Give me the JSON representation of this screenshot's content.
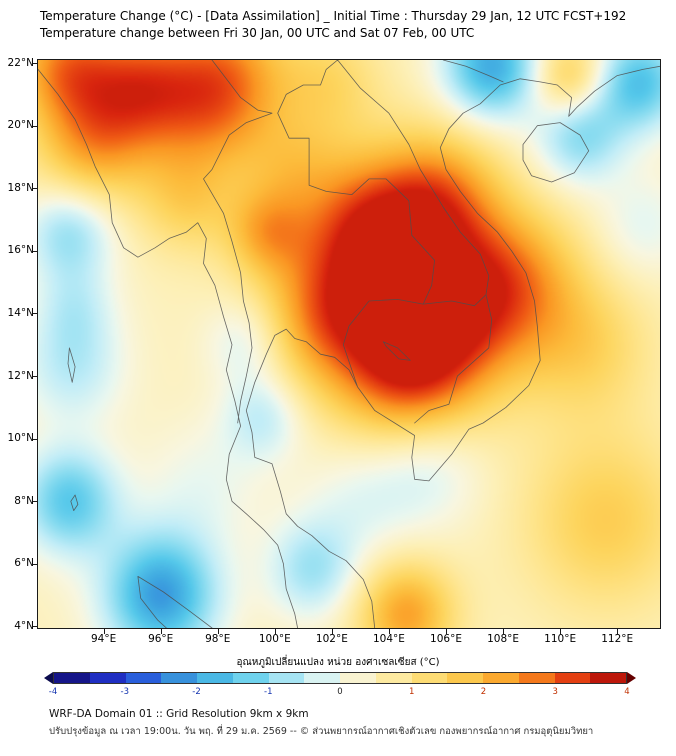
{
  "header": {
    "title_line1": "Temperature Change (°C) - [Data Assimilation] _ Initial Time : Thursday 29 Jan, 12 UTC FCST+192",
    "title_line2": "Temperature change between Fri 30 Jan, 00 UTC and Sat 07 Feb, 00 UTC"
  },
  "map": {
    "lat_ticks": [
      {
        "value": 4,
        "label": "4°N"
      },
      {
        "value": 6,
        "label": "6°N"
      },
      {
        "value": 8,
        "label": "8°N"
      },
      {
        "value": 10,
        "label": "10°N"
      },
      {
        "value": 12,
        "label": "12°N"
      },
      {
        "value": 14,
        "label": "14°N"
      },
      {
        "value": 16,
        "label": "16°N"
      },
      {
        "value": 18,
        "label": "18°N"
      },
      {
        "value": 20,
        "label": "20°N"
      },
      {
        "value": 22,
        "label": "22°N"
      }
    ],
    "lon_ticks": [
      {
        "value": 94,
        "label": "94°E"
      },
      {
        "value": 96,
        "label": "96°E"
      },
      {
        "value": 98,
        "label": "98°E"
      },
      {
        "value": 100,
        "label": "100°E"
      },
      {
        "value": 102,
        "label": "102°E"
      },
      {
        "value": 104,
        "label": "104°E"
      },
      {
        "value": 106,
        "label": "106°E"
      },
      {
        "value": 108,
        "label": "108°E"
      },
      {
        "value": 110,
        "label": "110°E"
      },
      {
        "value": 112,
        "label": "112°E"
      }
    ]
  },
  "colorbar": {
    "title": "อุณหภูมิเปลี่ยนแปลง หน่วย องศาเซลเซียส (°C)",
    "min": -4,
    "max": 4,
    "step": 0.5,
    "tick_labels": [
      "-4",
      "-3",
      "-2",
      "-1",
      "0",
      "1",
      "2",
      "3",
      "4"
    ],
    "negative_label_color": "#1535b0",
    "positive_label_color": "#c03000",
    "zero_label_color": "#222222",
    "under_arrow_color": "#0b0b4e",
    "over_arrow_color": "#650000"
  },
  "footer": {
    "line1": "WRF-DA Domain 01 :: Grid Resolution 9km x 9km",
    "line2": "ปรับปรุงข้อมูล ณ เวลา 19:00น. วัน พฤ. ที่ 29 ม.ค. 2569 -- © ส่วนพยากรณ์อากาศเชิงตัวเลข กองพยากรณ์อากาศ กรมอุตุนิยมวิทยา"
  },
  "chart_data": {
    "type": "heatmap",
    "title": "Temperature change between Fri 30 Jan, 00 UTC and Sat 07 Feb, 00 UTC",
    "unit": "°C",
    "lon_range": [
      91.7,
      113.5
    ],
    "lat_range": [
      3.95,
      22.1
    ],
    "value_range": [
      -4,
      4
    ],
    "display_clip": [
      -2.9,
      3.6
    ],
    "background_value": 0.45,
    "anomaly_centers": [
      {
        "lon": 104.3,
        "lat": 14.4,
        "value": 3.0,
        "radius_deg": 2.4
      },
      {
        "lon": 103.2,
        "lat": 16.9,
        "value": 1.6,
        "radius_deg": 1.6
      },
      {
        "lon": 105.8,
        "lat": 17.8,
        "value": 1.6,
        "radius_deg": 1.5
      },
      {
        "lon": 104.8,
        "lat": 12.1,
        "value": 1.5,
        "radius_deg": 1.6
      },
      {
        "lon": 106.9,
        "lat": 14.2,
        "value": 1.3,
        "radius_deg": 1.8
      },
      {
        "lon": 101.5,
        "lat": 13.9,
        "value": 1.0,
        "radius_deg": 1.5
      },
      {
        "lon": 95.3,
        "lat": 21.2,
        "value": 2.3,
        "radius_deg": 1.5
      },
      {
        "lon": 93.5,
        "lat": 19.3,
        "value": 1.5,
        "radius_deg": 1.4
      },
      {
        "lon": 97.9,
        "lat": 20.3,
        "value": 1.3,
        "radius_deg": 1.5
      },
      {
        "lon": 99.7,
        "lat": 16.6,
        "value": 1.4,
        "radius_deg": 1.0
      },
      {
        "lon": 108.7,
        "lat": 15.2,
        "value": 1.2,
        "radius_deg": 1.6
      },
      {
        "lon": 110.9,
        "lat": 12.9,
        "value": 1.0,
        "radius_deg": 1.6
      },
      {
        "lon": 104.6,
        "lat": 4.4,
        "value": 1.9,
        "radius_deg": 1.2
      },
      {
        "lon": 111.6,
        "lat": 7.4,
        "value": 1.2,
        "radius_deg": 2.0
      },
      {
        "lon": 110.3,
        "lat": 21.5,
        "value": 1.4,
        "radius_deg": 0.9
      },
      {
        "lon": 98.4,
        "lat": 21.9,
        "value": 1.5,
        "radius_deg": 1.5
      },
      {
        "lon": 101.9,
        "lat": 21.4,
        "value": 0.9,
        "radius_deg": 1.3
      },
      {
        "lon": 92.6,
        "lat": 21.9,
        "value": 1.9,
        "radius_deg": 1.3
      },
      {
        "lon": 96.9,
        "lat": 17.6,
        "value": 1.0,
        "radius_deg": 1.2
      },
      {
        "lon": 100.6,
        "lat": 18.7,
        "value": 0.8,
        "radius_deg": 1.2
      },
      {
        "lon": 107.6,
        "lat": 21.9,
        "value": -2.4,
        "radius_deg": 1.2
      },
      {
        "lon": 110.7,
        "lat": 19.7,
        "value": -1.5,
        "radius_deg": 1.1
      },
      {
        "lon": 112.8,
        "lat": 21.4,
        "value": -2.0,
        "radius_deg": 1.1
      },
      {
        "lon": 96.0,
        "lat": 5.0,
        "value": -2.6,
        "radius_deg": 1.4
      },
      {
        "lon": 92.8,
        "lat": 8.0,
        "value": -1.9,
        "radius_deg": 1.2
      },
      {
        "lon": 92.8,
        "lat": 16.6,
        "value": -1.4,
        "radius_deg": 1.1
      },
      {
        "lon": 99.6,
        "lat": 10.7,
        "value": -1.0,
        "radius_deg": 1.0
      },
      {
        "lon": 101.3,
        "lat": 5.8,
        "value": -1.2,
        "radius_deg": 1.1
      },
      {
        "lon": 92.9,
        "lat": 12.3,
        "value": -1.0,
        "radius_deg": 1.3
      },
      {
        "lon": 105.4,
        "lat": 9.2,
        "value": -0.8,
        "radius_deg": 1.4
      },
      {
        "lon": 99.0,
        "lat": 13.1,
        "value": -0.8,
        "radius_deg": 1.0
      },
      {
        "lon": 93.0,
        "lat": 14.2,
        "value": -0.7,
        "radius_deg": 1.0
      },
      {
        "lon": 103.0,
        "lat": 8.0,
        "value": -0.6,
        "radius_deg": 1.5
      },
      {
        "lon": 97.5,
        "lat": 8.5,
        "value": -0.5,
        "radius_deg": 1.5
      },
      {
        "lon": 112.9,
        "lat": 16.8,
        "value": -0.6,
        "radius_deg": 1.2
      }
    ],
    "color_scale": {
      "stops": [
        [
          -4.0,
          "#10106a"
        ],
        [
          -3.5,
          "#1a1aa8"
        ],
        [
          -3.0,
          "#2442dd"
        ],
        [
          -2.5,
          "#2f7ad9"
        ],
        [
          -2.0,
          "#3fa8e0"
        ],
        [
          -1.5,
          "#55c8ea"
        ],
        [
          -1.0,
          "#8adcf0"
        ],
        [
          -0.5,
          "#c2edf7"
        ],
        [
          -0.1,
          "#e8f7f0"
        ],
        [
          0.1,
          "#f8f6e0"
        ],
        [
          0.5,
          "#fdf0b8"
        ],
        [
          1.0,
          "#fee48a"
        ],
        [
          1.5,
          "#fdd55e"
        ],
        [
          2.0,
          "#fcbc3c"
        ],
        [
          2.5,
          "#fa9723"
        ],
        [
          3.0,
          "#ef5a14"
        ],
        [
          3.5,
          "#d8240e"
        ],
        [
          4.0,
          "#a30b06"
        ]
      ]
    }
  }
}
